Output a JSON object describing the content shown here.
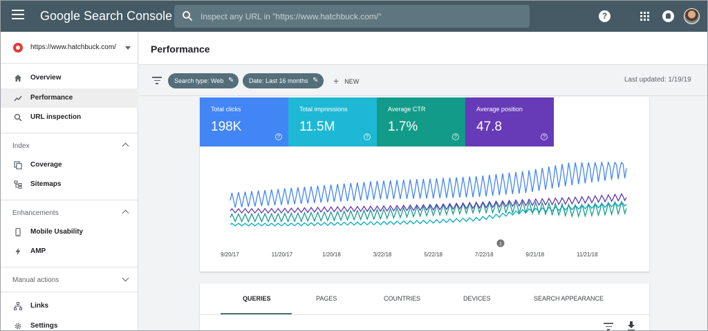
{
  "app": {
    "title": "Google Search Console",
    "search_placeholder": "Inspect any URL in \"https://www.hatchbuck.com/\"",
    "help_label": "?"
  },
  "sidebar": {
    "property": "https://www.hatchbuck.com/",
    "items": [
      {
        "label": "Overview",
        "icon": "home-icon"
      },
      {
        "label": "Performance",
        "icon": "trending-icon",
        "active": true
      },
      {
        "label": "URL inspection",
        "icon": "search-icon"
      }
    ],
    "sections": [
      {
        "label": "Index",
        "expanded": true,
        "items": [
          {
            "label": "Coverage",
            "icon": "copy-icon"
          },
          {
            "label": "Sitemaps",
            "icon": "sitemap-icon"
          }
        ]
      },
      {
        "label": "Enhancements",
        "expanded": true,
        "items": [
          {
            "label": "Mobile Usability",
            "icon": "phone-icon"
          },
          {
            "label": "AMP",
            "icon": "bolt-icon"
          }
        ]
      },
      {
        "label": "Manual actions",
        "expanded": false,
        "items": []
      }
    ],
    "bottom_items": [
      {
        "label": "Links",
        "icon": "links-icon"
      },
      {
        "label": "Settings",
        "icon": "gear-icon"
      }
    ]
  },
  "header": {
    "title": "Performance"
  },
  "filters": {
    "chips": [
      {
        "label": "Search type: Web"
      },
      {
        "label": "Date: Last 16 months"
      }
    ],
    "new_label": "NEW",
    "last_updated": "Last updated: 1/19/19"
  },
  "metrics": [
    {
      "label": "Total clicks",
      "value": "198K",
      "color": "#4285f4"
    },
    {
      "label": "Total impressions",
      "value": "11.5M",
      "color": "#1eb8d4"
    },
    {
      "label": "Average CTR",
      "value": "1.7%",
      "color": "#139b8a"
    },
    {
      "label": "Average position",
      "value": "47.8",
      "color": "#673ab7"
    }
  ],
  "chart_data": {
    "type": "line",
    "x_tick_labels": [
      "9/20/17",
      "11/20/17",
      "1/20/18",
      "3/22/18",
      "5/22/18",
      "7/22/18",
      "9/21/18",
      "11/21/18"
    ],
    "annotation_marker": "1",
    "grid": false,
    "legend": "none",
    "series": [
      {
        "color": "#4285f4",
        "pattern": "weekly cycle, rising trend, peaks highest near end",
        "relative_level": [
          0.45,
          0.5,
          0.55,
          0.6,
          0.62,
          0.65,
          0.72,
          0.85,
          0.95
        ]
      },
      {
        "color": "#00acc1",
        "pattern": "low and flat, rising after 7/22/18",
        "relative_level": [
          0.1,
          0.1,
          0.11,
          0.12,
          0.14,
          0.18,
          0.3,
          0.35,
          0.4
        ]
      },
      {
        "color": "#159c8b",
        "pattern": "weekly cycle, mid level, volatile at end",
        "relative_level": [
          0.2,
          0.2,
          0.22,
          0.25,
          0.3,
          0.35,
          0.35,
          0.3,
          0.35
        ]
      },
      {
        "color": "#5e35b1",
        "pattern": "steady, slowly rising",
        "relative_level": [
          0.3,
          0.3,
          0.32,
          0.33,
          0.35,
          0.38,
          0.42,
          0.45,
          0.5
        ]
      }
    ]
  },
  "tabs": {
    "items": [
      {
        "label": "QUERIES",
        "active": true
      },
      {
        "label": "PAGES"
      },
      {
        "label": "COUNTRIES"
      },
      {
        "label": "DEVICES"
      },
      {
        "label": "SEARCH APPEARANCE"
      }
    ]
  }
}
